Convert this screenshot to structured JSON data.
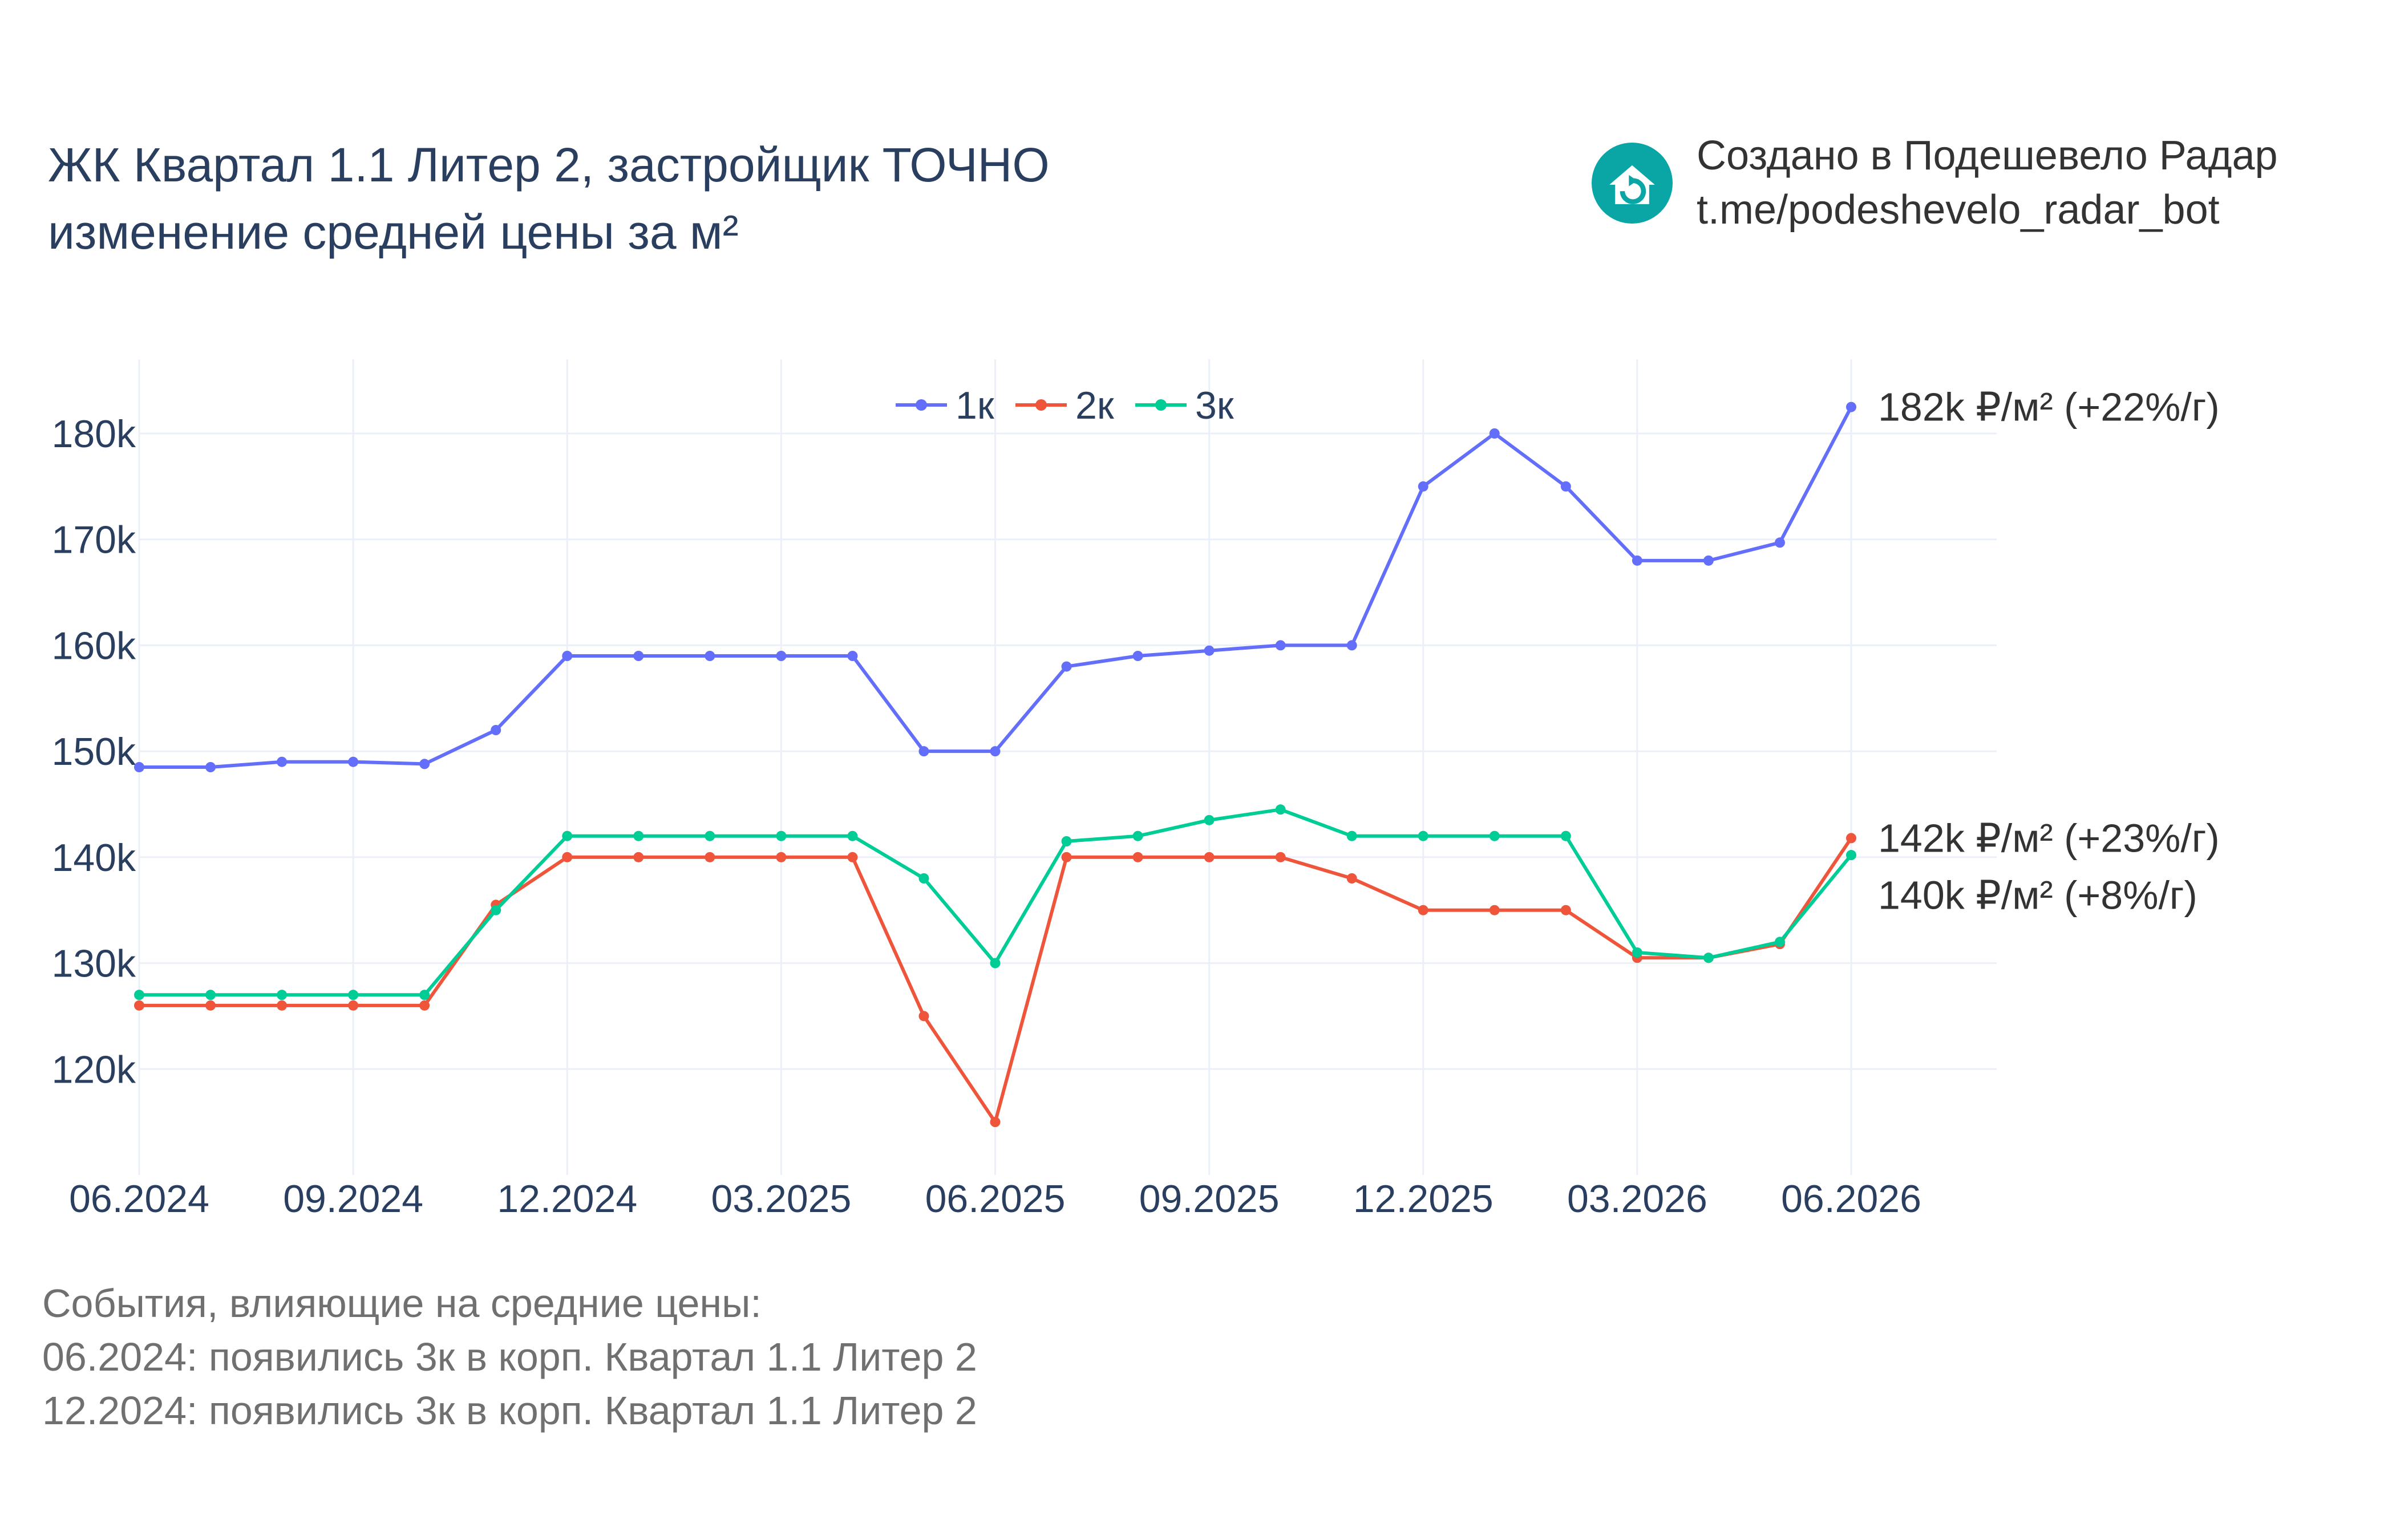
{
  "header": {
    "title_line1": "ЖК Квартал 1.1 Литер 2, застройщик ТОЧНО",
    "title_line2": "изменение средней цены за м²"
  },
  "brand": {
    "line1": "Создано в Подешевело Радар",
    "line2": "t.me/podeshevelo_radar_bot",
    "logo_icon": "house-refresh-icon",
    "logo_color": "#0aa5a5"
  },
  "events": {
    "heading": "События, влияющие на средние цены:",
    "items": [
      "06.2024: появились 3к в корп. Квартал 1.1 Литер 2",
      "12.2024: появились 3к в корп. Квартал 1.1 Литер 2"
    ]
  },
  "chart_data": {
    "type": "line",
    "x": [
      "06.2024",
      "07.2024",
      "08.2024",
      "09.2024",
      "10.2024",
      "11.2024",
      "12.2024",
      "01.2025",
      "02.2025",
      "03.2025",
      "04.2025",
      "05.2025",
      "06.2025",
      "07.2025",
      "08.2025",
      "09.2025",
      "10.2025",
      "11.2025",
      "12.2025",
      "01.2026",
      "02.2026",
      "03.2026",
      "04.2026",
      "05.2026",
      "06.2026"
    ],
    "xticks": [
      "06.2024",
      "09.2024",
      "12.2024",
      "03.2025",
      "06.2025",
      "09.2025",
      "12.2025",
      "03.2026",
      "06.2026"
    ],
    "ylim": [
      110000,
      187000
    ],
    "yticks": [
      120000,
      130000,
      140000,
      150000,
      160000,
      170000,
      180000
    ],
    "ytick_labels": [
      "120k",
      "130k",
      "140k",
      "150k",
      "160k",
      "170k",
      "180k"
    ],
    "grid": true,
    "legend_position": "top-center",
    "series": [
      {
        "name": "1к",
        "color": "#636efa",
        "values": [
          148500,
          148500,
          149000,
          149000,
          148800,
          152000,
          159000,
          159000,
          159000,
          159000,
          159000,
          150000,
          150000,
          158000,
          159000,
          159500,
          160000,
          160000,
          175000,
          180000,
          175000,
          168000,
          168000,
          169700,
          182500
        ],
        "end_label": "182k ₽/м² (+22%/г)"
      },
      {
        "name": "2к",
        "color": "#ef553b",
        "values": [
          126000,
          126000,
          126000,
          126000,
          126000,
          135500,
          140000,
          140000,
          140000,
          140000,
          140000,
          125000,
          115000,
          140000,
          140000,
          140000,
          140000,
          138000,
          135000,
          135000,
          135000,
          130500,
          130500,
          131800,
          141800
        ],
        "end_label": "142k ₽/м² (+23%/г)"
      },
      {
        "name": "3к",
        "color": "#00cc96",
        "values": [
          127000,
          127000,
          127000,
          127000,
          127000,
          135000,
          142000,
          142000,
          142000,
          142000,
          142000,
          138000,
          130000,
          141500,
          142000,
          143500,
          144500,
          142000,
          142000,
          142000,
          142000,
          131000,
          130500,
          132000,
          140200
        ],
        "end_label": "140k ₽/м² (+8%/г)"
      }
    ]
  }
}
